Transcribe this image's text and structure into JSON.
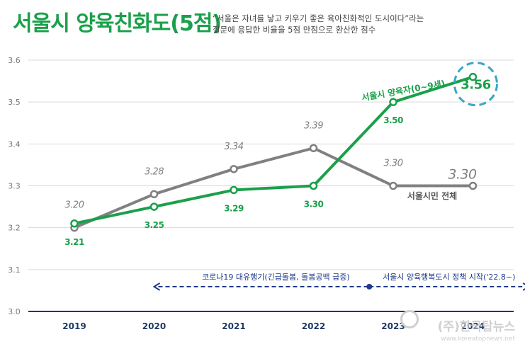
{
  "header": {
    "title": "서울시 양육친화도(5점)",
    "subtitle_line1": "“서울은 자녀를 낳고 키우기 좋은 육아친화적인 도시이다”라는",
    "subtitle_line2": "질문에 응답한 비율을 5점 만점으로 환산한 점수"
  },
  "chart_data": {
    "type": "line",
    "x": [
      "2019",
      "2020",
      "2021",
      "2022",
      "2023",
      "2024"
    ],
    "ylim": [
      3.0,
      3.6
    ],
    "yticks": [
      "3.0",
      "3.1",
      "3.2",
      "3.3",
      "3.4",
      "3.5",
      "3.6"
    ],
    "grid": true,
    "series": [
      {
        "name": "서울시민 전체",
        "color": "#808080",
        "values": [
          3.2,
          3.28,
          3.34,
          3.39,
          3.3,
          3.3
        ],
        "labels": [
          "3.20",
          "3.28",
          "3.34",
          "3.39",
          "3.30",
          "3.30"
        ]
      },
      {
        "name": "서울시 양육자(0~9세)",
        "color": "#1aa04a",
        "values": [
          3.21,
          3.25,
          3.29,
          3.3,
          3.5,
          3.56
        ],
        "labels": [
          "3.21",
          "3.25",
          "3.29",
          "3.30",
          "3.50",
          "3.56"
        ]
      }
    ],
    "annotations": [
      {
        "text": "코로나19 대유행기(긴급돌봄, 돌봄공백 급증)",
        "from": "2020",
        "to": "2022.7"
      },
      {
        "text": "서울시 양육행복도시 정책 시작('22.8~)",
        "from": "2022.7",
        "to": "2024.7"
      }
    ],
    "highlight": "3.56"
  },
  "watermark": {
    "text": "(주)한국탑뉴스",
    "url": "www.koreatopnews.net"
  }
}
